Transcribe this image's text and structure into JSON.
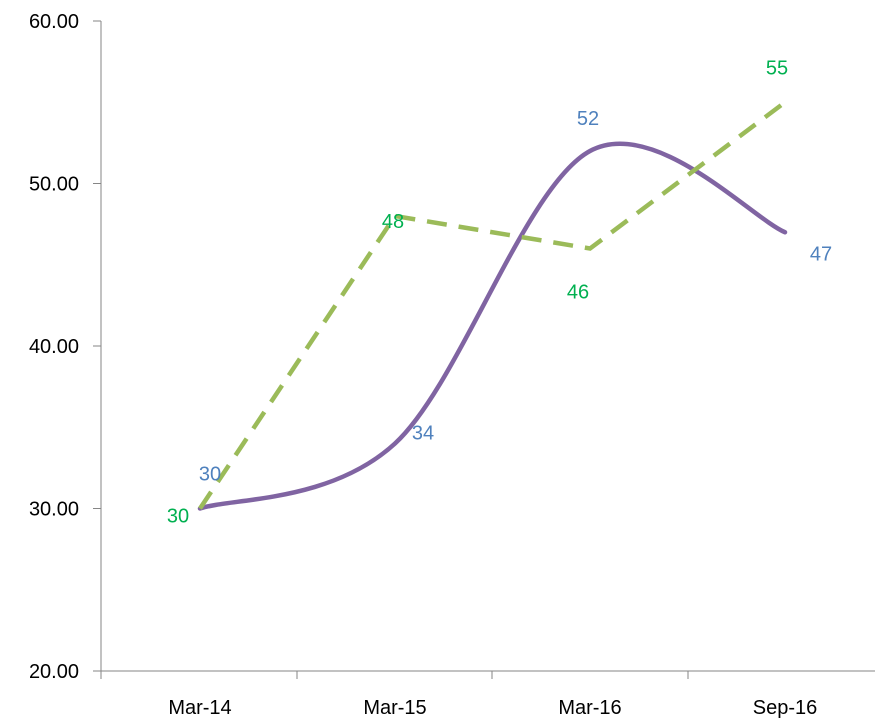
{
  "chart_data": {
    "type": "line",
    "categories": [
      "Mar-14",
      "Mar-15",
      "Mar-16",
      "Sep-16"
    ],
    "ylim": [
      20,
      60
    ],
    "yticks": [
      "20.00",
      "30.00",
      "40.00",
      "50.00",
      "60.00"
    ],
    "y_tick_values": [
      20,
      30,
      40,
      50,
      60
    ],
    "grid": false,
    "series": [
      {
        "values": [
          30,
          34,
          52,
          47
        ],
        "data_labels": [
          "30",
          "34",
          "52",
          "47"
        ],
        "color": "#8064A2",
        "label_color": "#4F81BD",
        "style": "solid-smooth"
      },
      {
        "values": [
          30,
          48,
          46,
          55
        ],
        "data_labels": [
          "30",
          "48",
          "46",
          "55"
        ],
        "color": "#9BBB59",
        "label_color": "#00B050",
        "style": "dashed"
      }
    ]
  }
}
